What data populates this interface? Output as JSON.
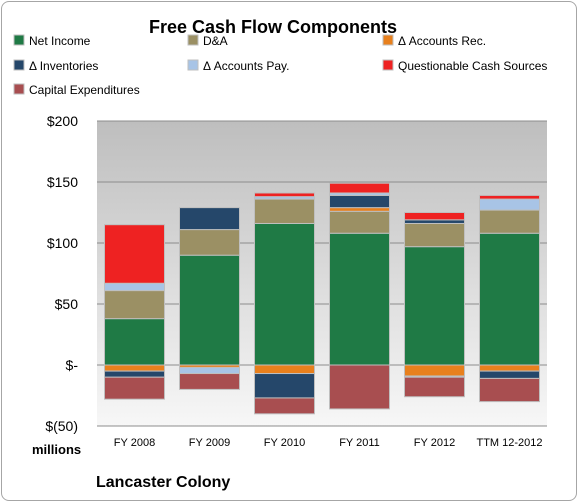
{
  "chart_data": {
    "type": "bar",
    "stacked": true,
    "title": "Free Cash Flow Components",
    "categories": [
      "FY 2008",
      "FY 2009",
      "FY 2010",
      "FY 2011",
      "FY 2012",
      "TTM 12-2012"
    ],
    "ylim": [
      -50,
      200
    ],
    "yticks": [
      {
        "value": 200,
        "label": "$200"
      },
      {
        "value": 150,
        "label": "$150"
      },
      {
        "value": 100,
        "label": "$100"
      },
      {
        "value": 50,
        "label": "$50"
      },
      {
        "value": 0,
        "label": "$-"
      },
      {
        "value": -50,
        "label": "$(50)"
      }
    ],
    "units_label": "millions",
    "company": "Lancaster Colony",
    "grid": true,
    "legend_position": "top",
    "series": [
      {
        "name": "Net Income",
        "color": "#1f7a45",
        "values": [
          38,
          90,
          116,
          108,
          97,
          108
        ]
      },
      {
        "name": "D&A",
        "color": "#9b9064",
        "values": [
          23,
          21,
          20,
          18,
          19,
          19
        ]
      },
      {
        "name": "Δ Accounts Rec.",
        "color": "#e8801d",
        "values": [
          -5,
          -2,
          -7,
          3,
          -9,
          -5
        ]
      },
      {
        "name": "Δ Inventories",
        "color": "#25476a",
        "values": [
          -5,
          18,
          -20,
          10,
          3,
          -6
        ]
      },
      {
        "name": "Δ Accounts Pay.",
        "color": "#a8c4e6",
        "values": [
          6,
          -5,
          2,
          2,
          -1,
          9
        ]
      },
      {
        "name": "Questionable Cash Sources",
        "color": "#ee2222",
        "values": [
          48,
          0,
          3,
          8,
          6,
          3
        ]
      },
      {
        "name": "Capital Expenditures",
        "color": "#a84e50",
        "values": [
          -18,
          -13,
          -13,
          -36,
          -16,
          -19
        ]
      }
    ]
  }
}
